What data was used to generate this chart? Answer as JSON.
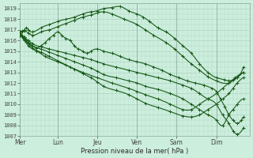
{
  "xlabel": "Pression niveau de la mer( hPa )",
  "xlim": [
    0,
    5.5
  ],
  "ylim": [
    1007,
    1019.5
  ],
  "yticks": [
    1007,
    1008,
    1009,
    1010,
    1011,
    1012,
    1013,
    1014,
    1015,
    1016,
    1017,
    1018,
    1019
  ],
  "xtick_labels": [
    "Mer",
    "Lun",
    "Jeu",
    "Ven",
    "Sam",
    "Dim"
  ],
  "xtick_positions": [
    0,
    0.9,
    1.85,
    2.8,
    3.75,
    4.7
  ],
  "background_color": "#cceedd",
  "grid_color": "#aaccbb",
  "line_color": "#1a5c1a",
  "marker_size": 1.8,
  "line_width": 0.8,
  "manual_lines": [
    {
      "x": [
        0.0,
        0.05,
        0.1,
        0.15,
        0.2,
        0.3,
        0.5,
        0.7,
        0.9,
        1.1,
        1.3,
        1.5,
        1.7,
        1.85,
        2.0,
        2.2,
        2.4,
        2.6,
        2.8,
        2.95,
        3.1,
        3.3,
        3.5,
        3.7,
        3.9,
        4.1,
        4.3,
        4.5,
        4.7,
        4.9,
        5.0,
        5.1,
        5.2,
        5.35
      ],
      "y": [
        1016.8,
        1016.9,
        1017.0,
        1017.2,
        1017.0,
        1016.8,
        1017.2,
        1017.5,
        1017.8,
        1018.0,
        1018.2,
        1018.5,
        1018.7,
        1018.8,
        1019.0,
        1019.1,
        1019.2,
        1018.8,
        1018.5,
        1018.2,
        1017.8,
        1017.2,
        1016.8,
        1016.2,
        1015.5,
        1014.8,
        1013.8,
        1013.0,
        1012.5,
        1012.3,
        1012.2,
        1012.3,
        1012.5,
        1013.5
      ]
    },
    {
      "x": [
        0.0,
        0.05,
        0.1,
        0.2,
        0.3,
        0.5,
        0.7,
        0.9,
        1.1,
        1.3,
        1.5,
        1.7,
        1.85,
        2.0,
        2.2,
        2.5,
        2.8,
        3.0,
        3.2,
        3.5,
        3.7,
        3.9,
        4.1,
        4.3,
        4.5,
        4.7,
        5.0,
        5.2,
        5.35
      ],
      "y": [
        1016.7,
        1016.8,
        1016.9,
        1016.7,
        1016.5,
        1016.8,
        1017.0,
        1017.3,
        1017.6,
        1017.9,
        1018.2,
        1018.4,
        1018.6,
        1018.7,
        1018.5,
        1018.0,
        1017.5,
        1017.0,
        1016.5,
        1015.8,
        1015.2,
        1014.5,
        1013.8,
        1013.2,
        1012.6,
        1012.2,
        1012.0,
        1012.5,
        1013.0
      ]
    },
    {
      "x": [
        0.0,
        0.05,
        0.1,
        0.15,
        0.2,
        0.3,
        0.4,
        0.5,
        0.6,
        0.7,
        0.8,
        0.9,
        1.0,
        1.1,
        1.2,
        1.3,
        1.4,
        1.5,
        1.6,
        1.7,
        1.85,
        2.0,
        2.2,
        2.4,
        2.6,
        2.8,
        3.0,
        3.2,
        3.4,
        3.6,
        3.8,
        4.0,
        4.2,
        4.4,
        4.6,
        4.7,
        4.8,
        4.9,
        5.0,
        5.1,
        5.2,
        5.3,
        5.35
      ],
      "y": [
        1016.7,
        1016.5,
        1016.3,
        1016.0,
        1015.8,
        1015.5,
        1015.3,
        1015.5,
        1015.8,
        1016.2,
        1016.5,
        1016.8,
        1016.5,
        1016.2,
        1016.0,
        1015.5,
        1015.2,
        1015.0,
        1014.8,
        1015.0,
        1015.2,
        1015.0,
        1014.8,
        1014.5,
        1014.2,
        1014.0,
        1013.8,
        1013.5,
        1013.2,
        1012.8,
        1012.5,
        1012.2,
        1012.0,
        1011.8,
        1011.5,
        1011.2,
        1010.5,
        1009.8,
        1009.0,
        1008.5,
        1008.2,
        1008.5,
        1008.8
      ]
    },
    {
      "x": [
        0.0,
        0.1,
        0.2,
        0.3,
        0.5,
        0.7,
        0.9,
        1.1,
        1.3,
        1.5,
        1.7,
        1.85,
        2.0,
        2.3,
        2.6,
        2.8,
        3.0,
        3.3,
        3.6,
        3.9,
        4.1,
        4.3,
        4.5,
        4.7,
        4.85,
        5.0,
        5.1,
        5.2,
        5.35
      ],
      "y": [
        1016.6,
        1016.3,
        1016.0,
        1015.7,
        1015.4,
        1015.2,
        1015.0,
        1014.8,
        1014.6,
        1014.4,
        1014.2,
        1014.0,
        1013.8,
        1013.5,
        1013.2,
        1013.0,
        1012.8,
        1012.5,
        1012.2,
        1011.8,
        1011.5,
        1011.0,
        1010.5,
        1010.0,
        1009.0,
        1008.2,
        1007.5,
        1007.2,
        1007.8
      ]
    },
    {
      "x": [
        0.0,
        0.1,
        0.2,
        0.3,
        0.5,
        0.7,
        0.9,
        1.1,
        1.3,
        1.5,
        1.7,
        1.85,
        2.0,
        2.3,
        2.6,
        2.8,
        3.0,
        3.3,
        3.6,
        3.9,
        4.1,
        4.3,
        4.5,
        4.7,
        4.85,
        5.0,
        5.1,
        5.2,
        5.35
      ],
      "y": [
        1016.5,
        1016.2,
        1015.8,
        1015.5,
        1015.2,
        1014.9,
        1014.6,
        1014.3,
        1014.0,
        1013.7,
        1013.4,
        1013.1,
        1012.8,
        1012.5,
        1012.2,
        1012.0,
        1011.7,
        1011.4,
        1011.0,
        1010.5,
        1010.0,
        1009.5,
        1009.0,
        1008.5,
        1008.0,
        1009.0,
        1009.5,
        1010.0,
        1010.5
      ]
    },
    {
      "x": [
        0.0,
        0.1,
        0.2,
        0.3,
        0.5,
        0.7,
        0.9,
        1.1,
        1.3,
        1.5,
        1.7,
        1.85,
        2.0,
        2.3,
        2.6,
        2.8,
        3.0,
        3.3,
        3.6,
        3.9,
        4.1,
        4.3,
        4.5,
        4.7,
        4.85,
        5.0,
        5.1,
        5.2,
        5.35
      ],
      "y": [
        1016.5,
        1016.1,
        1015.7,
        1015.3,
        1014.9,
        1014.5,
        1014.1,
        1013.7,
        1013.3,
        1012.9,
        1012.5,
        1012.1,
        1011.7,
        1011.3,
        1010.9,
        1010.5,
        1010.1,
        1009.7,
        1009.3,
        1008.9,
        1008.8,
        1009.0,
        1009.5,
        1010.0,
        1010.5,
        1011.0,
        1011.5,
        1012.0,
        1012.5
      ]
    },
    {
      "x": [
        0.0,
        0.1,
        0.2,
        0.4,
        0.6,
        0.9,
        1.2,
        1.5,
        1.85,
        2.2,
        2.6,
        2.8,
        3.0,
        3.3,
        3.6,
        3.9,
        4.1,
        4.3,
        4.5,
        4.7,
        4.85,
        5.0,
        5.15,
        5.35
      ],
      "y": [
        1016.5,
        1016.0,
        1015.5,
        1015.0,
        1014.5,
        1014.0,
        1013.5,
        1013.0,
        1012.5,
        1012.0,
        1011.5,
        1011.2,
        1010.9,
        1010.5,
        1010.0,
        1009.5,
        1009.5,
        1010.0,
        1010.5,
        1011.0,
        1011.5,
        1012.0,
        1012.5,
        1013.0
      ]
    }
  ]
}
